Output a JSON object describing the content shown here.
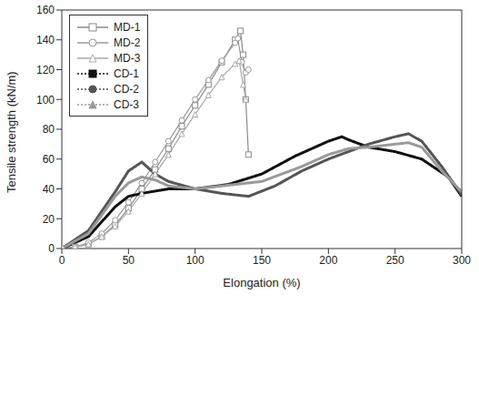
{
  "chart_data": {
    "type": "line",
    "x_label": "Elongation (%)",
    "y_label": "Tensile strength (kN/m)",
    "xlim": [
      0,
      300
    ],
    "xticks": [
      0,
      50,
      100,
      150,
      200,
      250,
      300
    ],
    "ylim": [
      0,
      160
    ],
    "yticks": [
      0,
      20,
      40,
      60,
      80,
      100,
      120,
      140,
      160
    ],
    "grid": false,
    "legend": "top-left",
    "series": [
      {
        "name": "MD-1",
        "color": "#8a8a8a",
        "marker": "open-square",
        "line_style": "solid",
        "x": [
          0,
          10,
          20,
          30,
          40,
          50,
          60,
          70,
          80,
          90,
          100,
          110,
          120,
          130,
          134,
          136,
          138,
          140
        ],
        "values": [
          0,
          1,
          3,
          8,
          16,
          27,
          40,
          53,
          67,
          82,
          96,
          110,
          125,
          140,
          146,
          130,
          100,
          63
        ]
      },
      {
        "name": "MD-2",
        "color": "#9a9a9a",
        "marker": "open-circle",
        "line_style": "solid",
        "x": [
          0,
          10,
          20,
          30,
          40,
          50,
          60,
          70,
          80,
          90,
          100,
          110,
          120,
          130,
          132,
          135,
          138,
          140
        ],
        "values": [
          0,
          1,
          4,
          10,
          19,
          31,
          44,
          58,
          72,
          86,
          100,
          113,
          126,
          138,
          141,
          125,
          118,
          120
        ]
      },
      {
        "name": "MD-3",
        "color": "#aaaaaa",
        "marker": "open-triangle",
        "line_style": "solid",
        "x": [
          0,
          10,
          20,
          30,
          40,
          50,
          60,
          70,
          80,
          90,
          100,
          110,
          120,
          130,
          133,
          136,
          138
        ],
        "values": [
          0,
          1,
          3,
          8,
          15,
          25,
          37,
          50,
          63,
          77,
          90,
          103,
          115,
          124,
          126,
          110,
          100
        ]
      },
      {
        "name": "CD-1",
        "color": "#111111",
        "marker": "filled-square",
        "line_style": "dotted",
        "x": [
          0,
          20,
          40,
          50,
          60,
          80,
          100,
          125,
          150,
          175,
          200,
          210,
          215,
          230,
          250,
          270,
          290,
          300
        ],
        "values": [
          0,
          8,
          28,
          35,
          37,
          40,
          40,
          43,
          50,
          62,
          72,
          75,
          73,
          68,
          65,
          60,
          48,
          35
        ]
      },
      {
        "name": "CD-2",
        "color": "#555555",
        "marker": "filled-circle",
        "line_style": "dotted",
        "x": [
          0,
          20,
          40,
          50,
          60,
          70,
          80,
          100,
          120,
          140,
          160,
          180,
          200,
          215,
          230,
          250,
          260,
          270,
          285,
          300
        ],
        "values": [
          0,
          12,
          38,
          52,
          58,
          50,
          45,
          40,
          37,
          35,
          42,
          52,
          60,
          65,
          70,
          75,
          77,
          72,
          55,
          36
        ]
      },
      {
        "name": "CD-3",
        "color": "#999999",
        "marker": "filled-triangle",
        "line_style": "dotted",
        "x": [
          0,
          20,
          40,
          50,
          60,
          70,
          80,
          100,
          120,
          150,
          180,
          200,
          215,
          230,
          250,
          260,
          270,
          285,
          300
        ],
        "values": [
          0,
          10,
          35,
          44,
          48,
          46,
          42,
          40,
          42,
          45,
          55,
          63,
          67,
          68,
          70,
          71,
          68,
          52,
          38
        ]
      }
    ]
  }
}
